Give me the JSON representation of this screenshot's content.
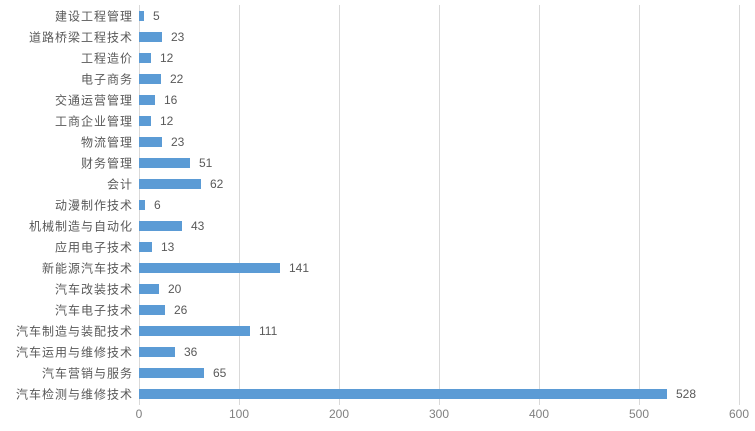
{
  "chart_data": {
    "type": "bar",
    "orientation": "horizontal",
    "title": "",
    "xlabel": "",
    "ylabel": "",
    "categories": [
      "建设工程管理",
      "道路桥梁工程技术",
      "工程造价",
      "电子商务",
      "交通运营管理",
      "工商企业管理",
      "物流管理",
      "财务管理",
      "会计",
      "动漫制作技术",
      "机械制造与自动化",
      "应用电子技术",
      "新能源汽车技术",
      "汽车改装技术",
      "汽车电子技术",
      "汽车制造与装配技术",
      "汽车运用与维修技术",
      "汽车营销与服务",
      "汽车检测与维修技术"
    ],
    "values": [
      5,
      23,
      12,
      22,
      16,
      12,
      23,
      51,
      62,
      6,
      43,
      13,
      141,
      20,
      26,
      111,
      36,
      65,
      528
    ],
    "data_labels": [
      5,
      23,
      12,
      22,
      16,
      12,
      23,
      51,
      62,
      6,
      43,
      13,
      141,
      20,
      26,
      111,
      36,
      65,
      528
    ],
    "xlim": [
      0,
      600
    ],
    "x_ticks": [
      "0",
      "100",
      "200",
      "300",
      "400",
      "500",
      "600"
    ],
    "x_tick_values": [
      0,
      100,
      200,
      300,
      400,
      500,
      600
    ],
    "grid": "vertical",
    "legend": "none",
    "colors": {
      "bar": "#5b9bd5",
      "gridline": "#d9d9d9",
      "label_text": "#595959",
      "axis_text": "#808080",
      "background": "#ffffff"
    }
  }
}
